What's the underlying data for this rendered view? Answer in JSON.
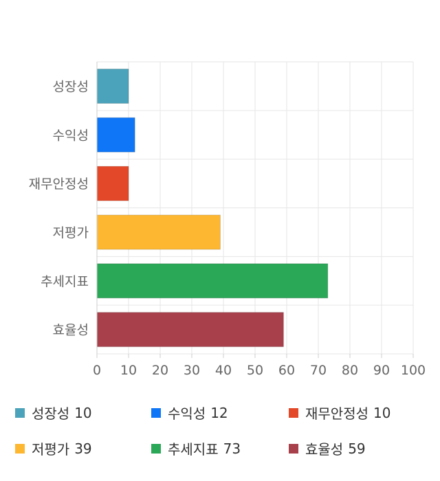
{
  "chart_data": {
    "type": "bar",
    "orientation": "horizontal",
    "categories": [
      "성장성",
      "수익성",
      "재무안정성",
      "저평가",
      "추세지표",
      "효율성"
    ],
    "values": [
      10,
      12,
      10,
      39,
      73,
      59
    ],
    "colors": [
      "#4aa3ba",
      "#0f76f7",
      "#e34828",
      "#fdb731",
      "#2aa757",
      "#a8404b"
    ],
    "xlim": [
      0,
      100
    ],
    "xticks": [
      "0",
      "10",
      "20",
      "30",
      "40",
      "50",
      "60",
      "70",
      "80",
      "90",
      "100"
    ],
    "title": "",
    "xlabel": "",
    "ylabel": "",
    "grid": true,
    "legend_position": "bottom"
  },
  "legend": {
    "items": [
      {
        "label": "성장성",
        "value": "10"
      },
      {
        "label": "수익성",
        "value": "12"
      },
      {
        "label": "재무안정성",
        "value": "10"
      },
      {
        "label": "저평가",
        "value": "39"
      },
      {
        "label": "추세지표",
        "value": "73"
      },
      {
        "label": "효율성",
        "value": "59"
      }
    ]
  }
}
